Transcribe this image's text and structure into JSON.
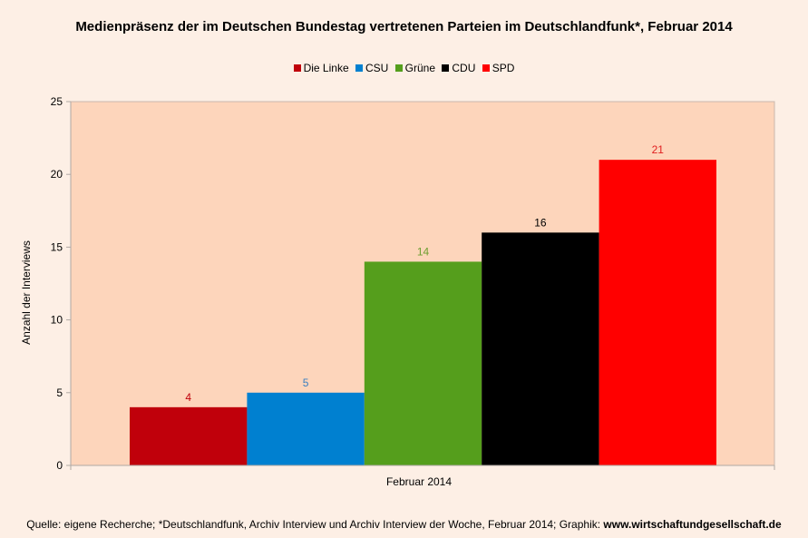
{
  "chart_data": {
    "type": "bar",
    "title": "Medienpräsenz der im Deutschen Bundestag vertretenen Parteien im Deutschlandfunk*, Februar 2014",
    "xlabel": "",
    "ylabel": "Anzahl der Interviews",
    "categories": [
      "Februar 2014"
    ],
    "ylim": [
      0,
      25
    ],
    "yticks": [
      0,
      5,
      10,
      15,
      20,
      25
    ],
    "grid": false,
    "legend_position": "top",
    "background_color": "#fdefe5",
    "plot_background_color": "#fdd5bb",
    "series": [
      {
        "name": "Die Linke",
        "values": [
          4
        ],
        "color": "#c0000b",
        "label_color": "#c0000b"
      },
      {
        "name": "CSU",
        "values": [
          5
        ],
        "color": "#0080d0",
        "label_color": "#3a7fc0"
      },
      {
        "name": "Grüne",
        "values": [
          14
        ],
        "color": "#559e1c",
        "label_color": "#6e9e30"
      },
      {
        "name": "CDU",
        "values": [
          16
        ],
        "color": "#000000",
        "label_color": "#000000"
      },
      {
        "name": "SPD",
        "values": [
          21
        ],
        "color": "#ff0000",
        "label_color": "#e02020"
      }
    ]
  },
  "source": {
    "text": "Quelle: eigene Recherche; *Deutschlandfunk, Archiv Interview und Archiv Interview der Woche, Februar 2014; Graphik: ",
    "link": "www.wirtschaftundgesellschaft.de"
  }
}
